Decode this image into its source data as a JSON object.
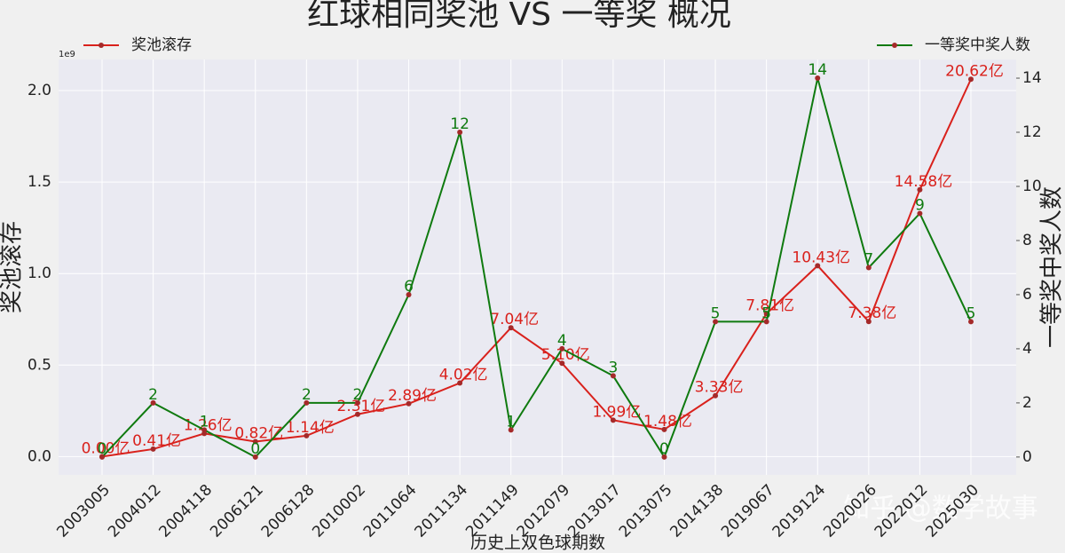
{
  "chart_data": {
    "type": "line",
    "title": "红球相同奖池 VS 一等奖 概况",
    "x_label": "历史上双色球期数",
    "y_label": "奖池滚存",
    "y2_label": "一等奖中奖人数",
    "y_offset_label": "1e9",
    "watermark": "知乎 @数学故事",
    "categories": [
      "2003005",
      "2004012",
      "2004118",
      "2006121",
      "2006128",
      "2010002",
      "2011064",
      "2011134",
      "2011149",
      "2012079",
      "2013017",
      "2013075",
      "2014138",
      "2019067",
      "2019124",
      "2020026",
      "2022012",
      "2025030"
    ],
    "series": [
      {
        "name": "奖池滚存",
        "color": "#d9211c",
        "legend": "upper left",
        "values": [
          0,
          0.041,
          0.126,
          0.082,
          0.114,
          0.231,
          0.289,
          0.402,
          0.704,
          0.51,
          0.199,
          0.148,
          0.333,
          0.781,
          1.043,
          0.738,
          1.458,
          2.062
        ],
        "value_labels": [
          "0.00亿",
          "0.41亿",
          "1.26亿",
          "0.82亿",
          "1.14亿",
          "2.31亿",
          "2.89亿",
          "4.02亿",
          "7.04亿",
          "5.10亿",
          "1.99亿",
          "1.48亿",
          "3.33亿",
          "7.81亿",
          "10.43亿",
          "7.38亿",
          "14.58亿",
          "20.62亿"
        ]
      },
      {
        "name": "一等奖中奖人数",
        "color": "#0f7a0f",
        "legend": "upper right",
        "axis": "y2",
        "values": [
          0,
          2,
          1,
          0,
          2,
          2,
          6,
          12,
          1,
          4,
          3,
          0,
          5,
          5,
          14,
          7,
          9,
          5
        ]
      }
    ],
    "ylim": [
      -0.1,
      2.17
    ],
    "yticks": [
      {
        "value": 0,
        "label": "0.0"
      },
      0.5,
      {
        "value": 1,
        "label": "1.0"
      },
      1.5,
      {
        "value": 2,
        "label": "2.0"
      }
    ],
    "y2lim": [
      -0.66,
      14.69
    ],
    "y2ticks": [
      0,
      2,
      4,
      6,
      8,
      10,
      12,
      14
    ],
    "grid": true
  }
}
